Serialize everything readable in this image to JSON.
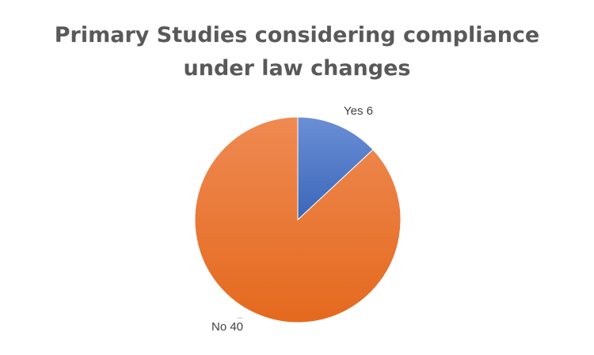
{
  "chart_data": {
    "type": "pie",
    "title": "Primary Studies considering compliance under law changes",
    "title_lines": [
      "Primary Studies considering compliance",
      "under law changes"
    ],
    "slices": [
      {
        "label": "Yes",
        "value": 6,
        "display": "Yes 6",
        "color": "#4472C4"
      },
      {
        "label": "No",
        "value": 40,
        "display": "No 40",
        "color": "#ED7D31"
      }
    ],
    "legend": "none",
    "start_angle_deg": 0,
    "direction": "clockwise"
  }
}
